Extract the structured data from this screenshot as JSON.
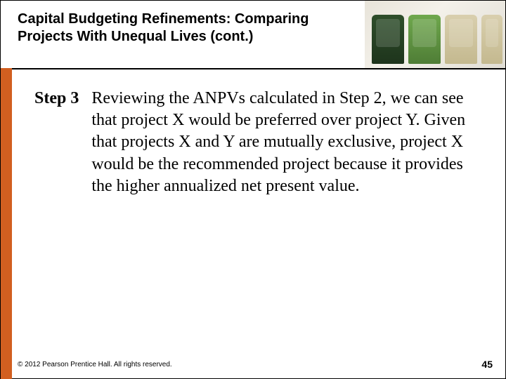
{
  "header": {
    "title": "Capital Budgeting Refinements: Comparing Projects With Unequal Lives (cont.)"
  },
  "content": {
    "step_label": "Step 3",
    "step_text": "Reviewing the ANPVs calculated in Step 2, we can see that project X would be preferred over project Y. Given that projects X and Y are mutually exclusive, project X would be the recommended project because it provides the higher annualized net present value."
  },
  "footer": {
    "copyright": "© 2012 Pearson Prentice Hall. All rights reserved.",
    "page_number": "45"
  },
  "colors": {
    "accent_orange": "#d25f20",
    "text": "#000000",
    "background": "#ffffff"
  }
}
